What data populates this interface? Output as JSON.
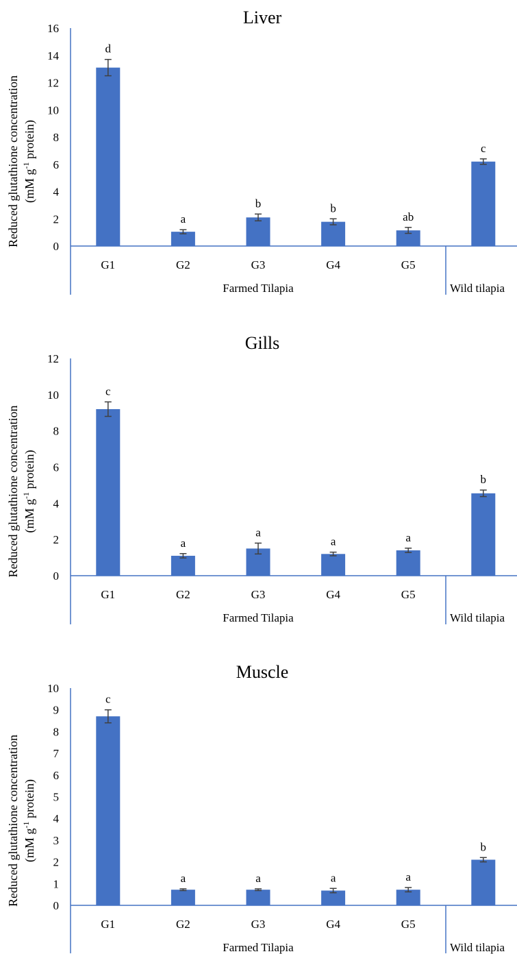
{
  "chart_data": [
    {
      "type": "bar",
      "title": "Liver",
      "ylabel": "Reduced glutathione concentration",
      "ylabel_unit": "(mM g-1 protein)",
      "ylim": [
        0,
        16
      ],
      "yticks": [
        "0",
        "2",
        "4",
        "6",
        "8",
        "10",
        "12",
        "14",
        "16"
      ],
      "categories": [
        "G1",
        "G2",
        "G3",
        "G4",
        "G5",
        ""
      ],
      "groups": [
        {
          "label": "Farmed Tilapia",
          "span": [
            0,
            4
          ]
        },
        {
          "label": "Wild tilapia",
          "span": [
            5,
            5
          ]
        }
      ],
      "values": [
        13.1,
        1.05,
        2.1,
        1.78,
        1.15,
        6.2
      ],
      "errors": [
        0.6,
        0.15,
        0.25,
        0.22,
        0.22,
        0.2
      ],
      "letters": [
        "d",
        "a",
        "b",
        "b",
        "ab",
        "c"
      ],
      "bar_color": "#4472c4"
    },
    {
      "type": "bar",
      "title": "Gills",
      "ylabel": "Reduced glutathione concentration",
      "ylabel_unit": "(mM g-1 protein)",
      "ylim": [
        0,
        12
      ],
      "yticks": [
        "0",
        "2",
        "4",
        "6",
        "8",
        "10",
        "12"
      ],
      "categories": [
        "G1",
        "G2",
        "G3",
        "G4",
        "G5",
        ""
      ],
      "groups": [
        {
          "label": "Farmed Tilapia",
          "span": [
            0,
            4
          ]
        },
        {
          "label": "Wild tilapia",
          "span": [
            5,
            5
          ]
        }
      ],
      "values": [
        9.2,
        1.1,
        1.5,
        1.2,
        1.4,
        4.55
      ],
      "errors": [
        0.4,
        0.12,
        0.3,
        0.1,
        0.12,
        0.18
      ],
      "letters": [
        "c",
        "a",
        "a",
        "a",
        "a",
        "b"
      ],
      "bar_color": "#4472c4"
    },
    {
      "type": "bar",
      "title": "Muscle",
      "ylabel": "Reduced glutathione concentration",
      "ylabel_unit": "(mM g-1 protein)",
      "ylim": [
        0,
        10
      ],
      "yticks": [
        "0",
        "1",
        "2",
        "3",
        "4",
        "5",
        "6",
        "7",
        "8",
        "9",
        "10"
      ],
      "categories": [
        "G1",
        "G2",
        "G3",
        "G4",
        "G5",
        ""
      ],
      "groups": [
        {
          "label": "Farmed Tilapia",
          "span": [
            0,
            4
          ]
        },
        {
          "label": "Wild tilapia",
          "span": [
            5,
            5
          ]
        }
      ],
      "values": [
        8.7,
        0.72,
        0.72,
        0.68,
        0.72,
        2.1
      ],
      "errors": [
        0.3,
        0.04,
        0.04,
        0.1,
        0.1,
        0.1
      ],
      "letters": [
        "c",
        "a",
        "a",
        "a",
        "a",
        "b"
      ],
      "bar_color": "#4472c4"
    }
  ]
}
